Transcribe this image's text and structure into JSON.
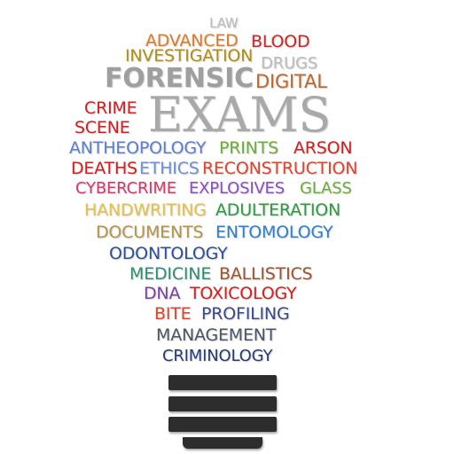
{
  "words": [
    {
      "key": "law",
      "text": "LAW",
      "color": "#bdbdbd"
    },
    {
      "key": "advanced",
      "text": "ADVANCED",
      "color": "#e07a2b"
    },
    {
      "key": "blood",
      "text": "BLOOD",
      "color": "#d32323"
    },
    {
      "key": "investigation",
      "text": "INVESTIGATION",
      "color": "#b08f12"
    },
    {
      "key": "drugs",
      "text": "DRUGS",
      "color": "#bcbcbc"
    },
    {
      "key": "forensic",
      "text": "FORENSIC",
      "color": "#9f9f9f"
    },
    {
      "key": "digital",
      "text": "DIGITAL",
      "color": "#c2672a"
    },
    {
      "key": "crime",
      "text": "CRIME",
      "color": "#d41f1f"
    },
    {
      "key": "scene",
      "text": "SCENE",
      "color": "#d41f1f"
    },
    {
      "key": "exams",
      "text": "EXAMS",
      "color": "#a9a9a9"
    },
    {
      "key": "antheopology",
      "text": "ANTHEOPOLOGY",
      "color": "#5b7fd0"
    },
    {
      "key": "prints",
      "text": "PRINTS",
      "color": "#6cae3b"
    },
    {
      "key": "arson",
      "text": "ARSON",
      "color": "#d41f1f"
    },
    {
      "key": "deaths",
      "text": "DEATHS",
      "color": "#d41f1f"
    },
    {
      "key": "ethics",
      "text": "ETHICS",
      "color": "#6f8fd6"
    },
    {
      "key": "reconstruction",
      "text": "RECONSTRUCTION",
      "color": "#e0442c"
    },
    {
      "key": "cybercrime",
      "text": "CYBERCRIME",
      "color": "#d63a6a"
    },
    {
      "key": "explosives",
      "text": "EXPLOSIVES",
      "color": "#8a4fc0"
    },
    {
      "key": "glass",
      "text": "GLASS",
      "color": "#6cae3b"
    },
    {
      "key": "handwriting",
      "text": "HANDWRITING",
      "color": "#e6c047"
    },
    {
      "key": "adulteration",
      "text": "ADULTERATION",
      "color": "#2d9b3f"
    },
    {
      "key": "documents",
      "text": "DOCUMENTS",
      "color": "#b7924a"
    },
    {
      "key": "entomology",
      "text": "ENTOMOLOGY",
      "color": "#2f7fd1"
    },
    {
      "key": "odontology",
      "text": "ODONTOLOGY",
      "color": "#2b4f9e"
    },
    {
      "key": "medicine",
      "text": "MEDICINE",
      "color": "#2e8f72"
    },
    {
      "key": "ballistics",
      "text": "BALLISTICS",
      "color": "#a0522d"
    },
    {
      "key": "dna",
      "text": "DNA",
      "color": "#7b3fa8"
    },
    {
      "key": "toxicology",
      "text": "TOXICOLOGY",
      "color": "#d41f1f"
    },
    {
      "key": "bite",
      "text": "BITE",
      "color": "#e0442c"
    },
    {
      "key": "profiling",
      "text": "PROFILING",
      "color": "#3b4a8f"
    },
    {
      "key": "management",
      "text": "MANAGEMENT",
      "color": "#4b5566"
    },
    {
      "key": "criminology",
      "text": "CRIMINOLOGY",
      "color": "#243a7a"
    }
  ]
}
